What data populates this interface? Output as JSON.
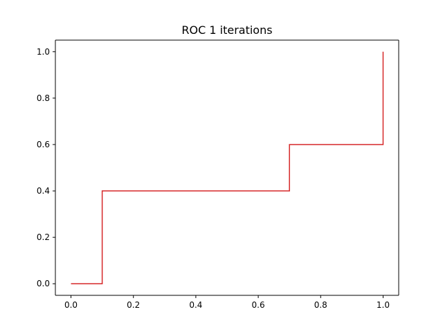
{
  "chart_data": {
    "type": "line",
    "title": "ROC 1 iterations",
    "xlabel": "",
    "ylabel": "",
    "xlim": [
      -0.05,
      1.05
    ],
    "ylim": [
      -0.05,
      1.05
    ],
    "xticks": [
      0.0,
      0.2,
      0.4,
      0.6,
      0.8,
      1.0
    ],
    "yticks": [
      0.0,
      0.2,
      0.4,
      0.6,
      0.8,
      1.0
    ],
    "xtick_labels": [
      "0.0",
      "0.2",
      "0.4",
      "0.6",
      "0.8",
      "1.0"
    ],
    "ytick_labels": [
      "0.0",
      "0.2",
      "0.4",
      "0.6",
      "0.8",
      "1.0"
    ],
    "grid": false,
    "legend": "none",
    "series": [
      {
        "color": "#d62728",
        "x": [
          0.0,
          0.1,
          0.1,
          0.7,
          0.7,
          1.0,
          1.0
        ],
        "y": [
          0.0,
          0.0,
          0.4,
          0.4,
          0.6,
          0.6,
          1.0
        ]
      }
    ]
  }
}
